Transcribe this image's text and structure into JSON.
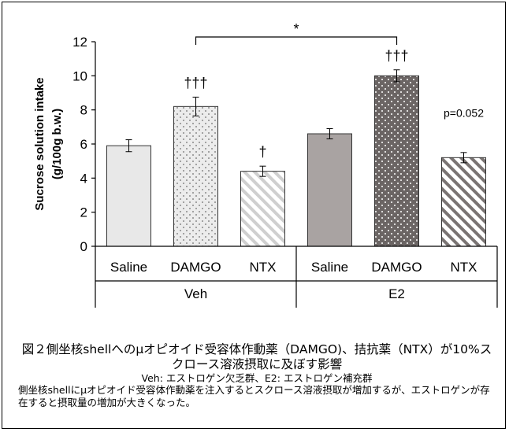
{
  "chart_data": {
    "type": "bar",
    "ylabel": "Sucrose solution intake (g/100g b.w.)",
    "ylabel_lines": [
      "Sucrose solution intake",
      "(g/100g b.w.)"
    ],
    "ylim": [
      0,
      12
    ],
    "yticks": [
      0,
      2,
      4,
      6,
      8,
      10,
      12
    ],
    "groups": [
      {
        "name": "Veh",
        "categories": [
          "Saline",
          "DAMGO",
          "NTX"
        ]
      },
      {
        "name": "E2",
        "categories": [
          "Saline",
          "DAMGO",
          "NTX"
        ]
      }
    ],
    "bars": [
      {
        "group": "Veh",
        "category": "Saline",
        "value": 5.9,
        "error": 0.35,
        "fill": "solid-light",
        "label": ""
      },
      {
        "group": "Veh",
        "category": "DAMGO",
        "value": 8.2,
        "error": 0.55,
        "fill": "dots-light",
        "label": "†††"
      },
      {
        "group": "Veh",
        "category": "NTX",
        "value": 4.4,
        "error": 0.3,
        "fill": "stripes-light",
        "label": "†"
      },
      {
        "group": "E2",
        "category": "Saline",
        "value": 6.6,
        "error": 0.3,
        "fill": "solid-dark",
        "label": ""
      },
      {
        "group": "E2",
        "category": "DAMGO",
        "value": 10.0,
        "error": 0.35,
        "fill": "dots-dark",
        "label": "†††"
      },
      {
        "group": "E2",
        "category": "NTX",
        "value": 5.2,
        "error": 0.3,
        "fill": "stripes-dark",
        "label": "p=0.052"
      }
    ],
    "significance": {
      "from_bar": 1,
      "to_bar": 4,
      "label": "*"
    },
    "colors": {
      "light": "#e8e8e8",
      "dark": "#a9a3a2",
      "dots_dark_bg": "#696463",
      "stroke": "#333333"
    }
  },
  "caption": {
    "title": "図２側坐核shellへのμオピオイド受容体作動薬（DAMGO)、拮抗薬（NTX）が10%スクロース溶液摂取に及ぼす影響",
    "legend_note": "Veh: エストロゲン欠乏群、E2: エストロゲン補充群",
    "summary": "側坐核shellにμオピオイド受容体作動薬を注入するとスクロース溶液摂取が増加するが、エストロゲンが存在すると摂取量の増加が大きくなった。"
  }
}
